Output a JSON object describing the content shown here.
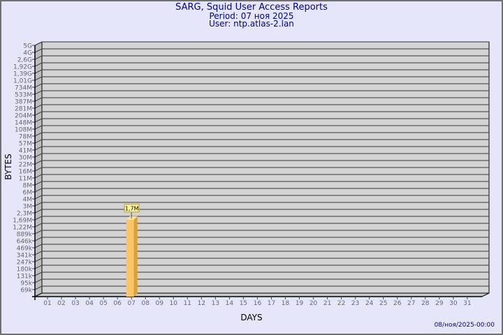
{
  "header": {
    "title": "SARG, Squid User Access Reports",
    "period": "Period: 07 ноя 2025",
    "user": "User: ntp.atlas-2.lan"
  },
  "footer": {
    "timestamp": "08/ноя/2025-00:00"
  },
  "chart_data": {
    "type": "bar",
    "title": "SARG, Squid User Access Reports",
    "xlabel": "DAYS",
    "ylabel": "BYTES",
    "y_scale": "log",
    "y_ticks": [
      "5G",
      "4G",
      "2,6G",
      "1,92G",
      "1,39G",
      "1,01G",
      "734M",
      "533M",
      "387M",
      "281M",
      "204M",
      "148M",
      "108M",
      "78M",
      "57M",
      "41M",
      "30M",
      "22M",
      "16M",
      "11M",
      "8M",
      "6M",
      "4M",
      "3M",
      "2,3M",
      "1,69M",
      "1,22M",
      "889k",
      "646k",
      "469k",
      "341k",
      "247k",
      "180k",
      "131k",
      "95k",
      "69k"
    ],
    "categories": [
      "01",
      "02",
      "03",
      "04",
      "05",
      "06",
      "07",
      "08",
      "09",
      "10",
      "11",
      "12",
      "13",
      "14",
      "15",
      "16",
      "17",
      "18",
      "19",
      "20",
      "21",
      "22",
      "23",
      "24",
      "25",
      "26",
      "27",
      "28",
      "29",
      "30",
      "31"
    ],
    "bars": [
      {
        "day": "07",
        "value": 1700000,
        "label": "1,7M"
      }
    ],
    "grid": true,
    "colors": {
      "bar": "#fbc466",
      "bar_side": "#d9a040",
      "bar_top": "#fde08f",
      "plot": "#d3d3d3",
      "label_bg": "#fff59e"
    }
  }
}
